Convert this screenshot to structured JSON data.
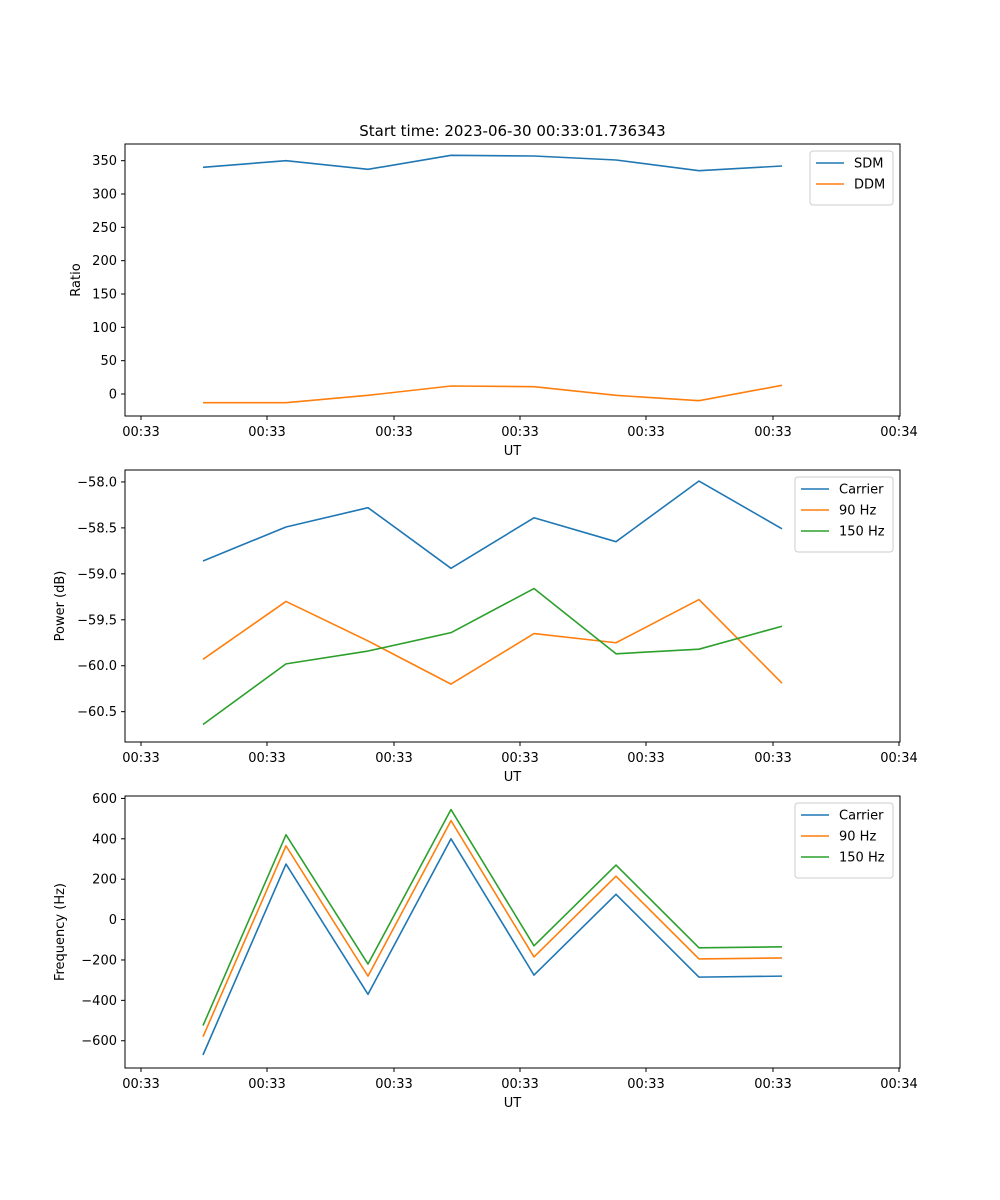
{
  "chart_data": [
    {
      "type": "line",
      "title": "Start time: 2023-06-30 00:33:01.736343",
      "xlabel": "UT",
      "ylabel": "Ratio",
      "x_tick_labels": [
        "00:33",
        "00:33",
        "00:33",
        "00:33",
        "00:33",
        "00:33",
        "00:34"
      ],
      "y_ticks": [
        0,
        50,
        100,
        150,
        200,
        250,
        300,
        350
      ],
      "ylim": [
        -33,
        375
      ],
      "legend_position": "top-right",
      "grid": false,
      "series": [
        {
          "name": "SDM",
          "color": "#1f77b4",
          "values": [
            340,
            350,
            337,
            358,
            357,
            351,
            335,
            342
          ]
        },
        {
          "name": "DDM",
          "color": "#ff7f0e",
          "values": [
            -13,
            -13,
            -2,
            12,
            11,
            -2,
            -10,
            13
          ]
        }
      ]
    },
    {
      "type": "line",
      "title": "",
      "xlabel": "UT",
      "ylabel": "Power (dB)",
      "x_tick_labels": [
        "00:33",
        "00:33",
        "00:33",
        "00:33",
        "00:33",
        "00:33",
        "00:34"
      ],
      "y_ticks": [
        -60.5,
        -60.0,
        -59.5,
        -59.0,
        -58.5,
        -58.0
      ],
      "y_tick_labels": [
        "−60.5",
        "−60.0",
        "−59.5",
        "−59.0",
        "−58.5",
        "−58.0"
      ],
      "ylim": [
        -60.83,
        -57.87
      ],
      "legend_position": "top-right",
      "grid": false,
      "series": [
        {
          "name": "Carrier",
          "color": "#1f77b4",
          "values": [
            -58.86,
            -58.49,
            -58.28,
            -58.94,
            -58.39,
            -58.65,
            -57.99,
            -58.51
          ]
        },
        {
          "name": "90 Hz",
          "color": "#ff7f0e",
          "values": [
            -59.93,
            -59.3,
            -59.73,
            -60.2,
            -59.65,
            -59.75,
            -59.28,
            -60.19
          ]
        },
        {
          "name": "150 Hz",
          "color": "#2ca02c",
          "values": [
            -60.64,
            -59.98,
            -59.84,
            -59.64,
            -59.16,
            -59.87,
            -59.82,
            -59.57
          ]
        }
      ]
    },
    {
      "type": "line",
      "title": "",
      "xlabel": "UT",
      "ylabel": "Frequency (Hz)",
      "x_tick_labels": [
        "00:33",
        "00:33",
        "00:33",
        "00:33",
        "00:33",
        "00:33",
        "00:34"
      ],
      "y_ticks": [
        -600,
        -400,
        -200,
        0,
        200,
        400,
        600
      ],
      "y_tick_labels": [
        "−600",
        "−400",
        "−200",
        "0",
        "200",
        "400",
        "600"
      ],
      "ylim": [
        -735,
        612
      ],
      "legend_position": "top-right",
      "grid": false,
      "series": [
        {
          "name": "Carrier",
          "color": "#1f77b4",
          "values": [
            -670,
            275,
            -370,
            400,
            -275,
            125,
            -285,
            -280
          ]
        },
        {
          "name": "90 Hz",
          "color": "#ff7f0e",
          "values": [
            -580,
            365,
            -280,
            490,
            -185,
            215,
            -195,
            -190
          ]
        },
        {
          "name": "150 Hz",
          "color": "#2ca02c",
          "values": [
            -525,
            420,
            -220,
            545,
            -130,
            270,
            -140,
            -135
          ]
        }
      ]
    }
  ]
}
